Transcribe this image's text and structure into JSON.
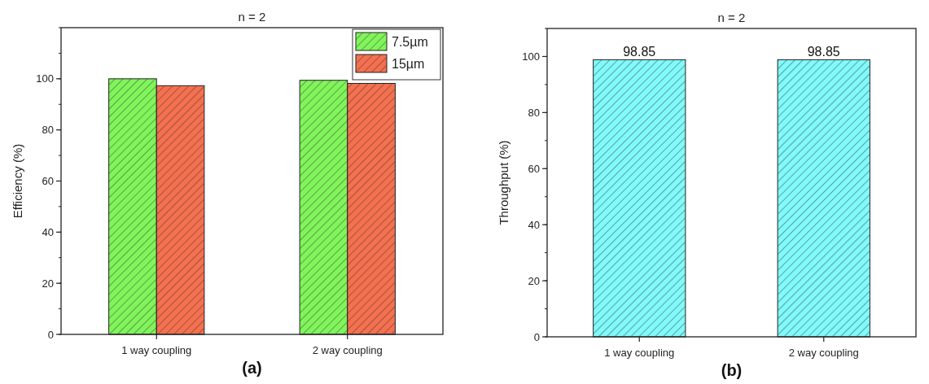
{
  "chart_data": [
    {
      "type": "bar",
      "title": "n = 2",
      "ylabel": "Efficiency (%)",
      "categories": [
        "1 way coupling",
        "2 way coupling"
      ],
      "series": [
        {
          "name": "7.5µm",
          "color": "#80f55a",
          "values": [
            100,
            99.4
          ]
        },
        {
          "name": "15µm",
          "color": "#f5704f",
          "values": [
            97.3,
            98.2
          ]
        }
      ],
      "ylim": [
        0,
        120
      ],
      "yticks": [
        0,
        20,
        40,
        60,
        80,
        100
      ],
      "legend": "top right",
      "annotations": [
        "(a)"
      ]
    },
    {
      "type": "bar",
      "title": "n = 2",
      "ylabel": "Throughput (%)",
      "categories": [
        "1 way coupling",
        "2 way coupling"
      ],
      "series": [
        {
          "color": "#80fafa",
          "values": [
            98.85,
            98.85
          ]
        }
      ],
      "ylim": [
        0,
        110
      ],
      "yticks": [
        0,
        20,
        40,
        60,
        80,
        100
      ],
      "data_labels": true,
      "annotations": [
        "(b)"
      ]
    }
  ]
}
